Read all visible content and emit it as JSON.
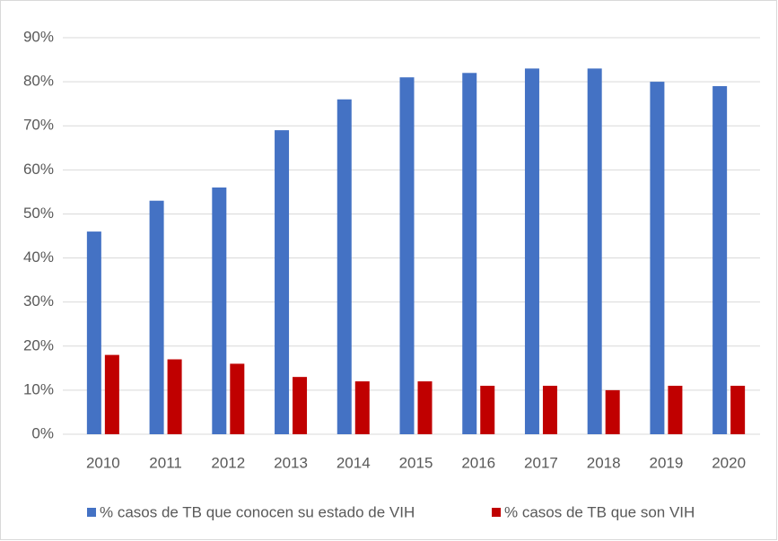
{
  "chart_data": {
    "type": "bar",
    "categories": [
      "2010",
      "2011",
      "2012",
      "2013",
      "2014",
      "2015",
      "2016",
      "2017",
      "2018",
      "2019",
      "2020"
    ],
    "series": [
      {
        "name": "% casos de TB que conocen su estado de VIH",
        "color": "#4472c4",
        "values": [
          46,
          53,
          56,
          69,
          76,
          81,
          82,
          83,
          83,
          80,
          79
        ]
      },
      {
        "name": "% casos de TB que son VIH",
        "color": "#c00000",
        "values": [
          18,
          17,
          16,
          13,
          12,
          12,
          11,
          11,
          10,
          11,
          11
        ]
      }
    ],
    "ylim": [
      0,
      90
    ],
    "yticks": [
      {
        "value": 0,
        "label": "0%"
      },
      {
        "value": 10,
        "label": "10%"
      },
      {
        "value": 20,
        "label": "20%"
      },
      {
        "value": 30,
        "label": "30%"
      },
      {
        "value": 40,
        "label": "40%"
      },
      {
        "value": 50,
        "label": "50%"
      },
      {
        "value": 60,
        "label": "60%"
      },
      {
        "value": 70,
        "label": "70%"
      },
      {
        "value": 80,
        "label": "80%"
      },
      {
        "value": 90,
        "label": "90%"
      }
    ],
    "grid": true,
    "legend": "bottom"
  }
}
